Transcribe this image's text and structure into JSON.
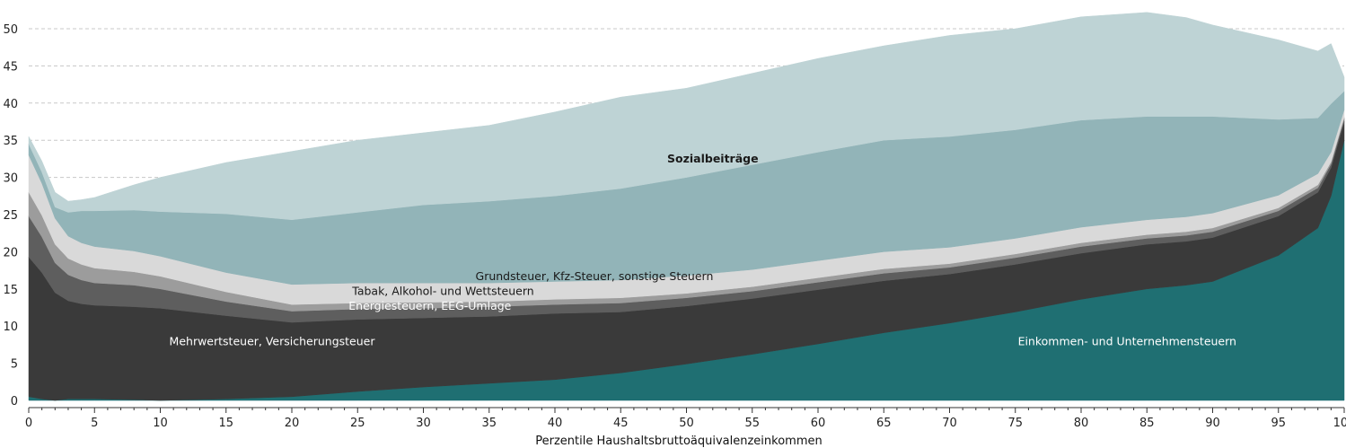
{
  "chart_data": {
    "type": "area",
    "stacked": true,
    "xlabel": "Perzentile Haushaltsbruttoäquivalenzeinkommen",
    "ylabel": "",
    "xlim": [
      0,
      100
    ],
    "ylim": [
      0,
      52
    ],
    "x_ticks": [
      0,
      5,
      10,
      15,
      20,
      25,
      30,
      35,
      40,
      45,
      50,
      55,
      60,
      65,
      70,
      75,
      80,
      85,
      90,
      95,
      100
    ],
    "y_ticks": [
      0,
      5,
      10,
      15,
      20,
      25,
      30,
      35,
      40,
      45,
      50
    ],
    "grid": "horizontal dashed",
    "x": [
      0,
      1,
      2,
      3,
      4,
      5,
      8,
      10,
      15,
      20,
      25,
      30,
      35,
      40,
      45,
      50,
      55,
      60,
      65,
      70,
      75,
      80,
      85,
      88,
      90,
      95,
      98,
      99,
      100
    ],
    "series": [
      {
        "name": "Einkommen- und Unternehmensteuern",
        "color": "#1f6f72",
        "values": [
          0.5,
          0.2,
          0,
          0.2,
          0.2,
          0.2,
          0.1,
          0,
          0.2,
          0.5,
          1.2,
          1.8,
          2.3,
          2.8,
          3.7,
          4.9,
          6.2,
          7.6,
          9.1,
          10.4,
          11.9,
          13.6,
          15.0,
          15.5,
          16.0,
          19.5,
          23.2,
          27.5,
          35.0
        ]
      },
      {
        "name": "Mehrwertsteuer, Versicherungsteuer",
        "color": "#3a3a3a",
        "values": [
          18.8,
          17.0,
          14.5,
          13.2,
          12.8,
          12.6,
          12.5,
          12.4,
          11.2,
          10.0,
          9.7,
          9.3,
          9.0,
          8.9,
          8.2,
          7.8,
          7.5,
          7.3,
          7.0,
          6.6,
          6.4,
          6.2,
          6.0,
          5.9,
          5.9,
          5.3,
          4.8,
          3.8,
          2.5
        ]
      },
      {
        "name": "Energiesteuern, EEG-Umlage",
        "color": "#5e5e5e",
        "values": [
          5.5,
          4.8,
          4.0,
          3.5,
          3.2,
          3.0,
          2.9,
          2.6,
          1.9,
          1.5,
          1.4,
          1.3,
          1.3,
          1.2,
          1.2,
          1.1,
          1.0,
          1.0,
          1.0,
          0.9,
          0.9,
          0.9,
          0.8,
          0.8,
          0.8,
          0.7,
          0.6,
          0.5,
          0.4
        ]
      },
      {
        "name": "Tabak, Alkohol- und Wettsteuern",
        "color": "#9c9c9c",
        "values": [
          3.2,
          2.9,
          2.5,
          2.2,
          2.1,
          2.0,
          1.8,
          1.7,
          1.3,
          0.9,
          0.8,
          0.8,
          0.7,
          0.7,
          0.7,
          0.6,
          0.6,
          0.6,
          0.6,
          0.5,
          0.5,
          0.5,
          0.5,
          0.5,
          0.5,
          0.4,
          0.4,
          0.3,
          0.2
        ]
      },
      {
        "name": "Grundsteuer, Kfz-Steuer, sonstige Steuern",
        "color": "#d9d9d9",
        "values": [
          5.0,
          4.3,
          3.5,
          3.0,
          2.9,
          2.9,
          2.8,
          2.7,
          2.6,
          2.7,
          2.7,
          2.6,
          2.5,
          2.4,
          2.4,
          2.4,
          2.3,
          2.3,
          2.3,
          2.2,
          2.1,
          2.1,
          2.0,
          2.0,
          2.0,
          1.7,
          1.5,
          1.3,
          1.0
        ]
      },
      {
        "name": "Sozialbeiträge",
        "color": "#92b4b8",
        "values": [
          1.5,
          1.5,
          1.5,
          3.2,
          4.3,
          4.8,
          5.5,
          6.0,
          7.9,
          8.7,
          9.5,
          10.5,
          11.0,
          11.5,
          12.3,
          13.2,
          14.1,
          14.6,
          15.0,
          14.9,
          14.6,
          14.4,
          13.9,
          13.5,
          13.0,
          10.2,
          7.5,
          6.5,
          2.5
        ]
      },
      {
        "name": "",
        "color": "#bed3d5",
        "values": [
          1.0,
          1.5,
          2.0,
          1.5,
          1.5,
          1.8,
          3.4,
          4.6,
          6.9,
          9.2,
          9.7,
          9.7,
          10.2,
          11.3,
          12.3,
          12.0,
          12.3,
          12.6,
          12.7,
          13.6,
          13.6,
          13.9,
          14.0,
          13.3,
          12.3,
          10.7,
          9.0,
          8.1,
          1.9
        ]
      }
    ],
    "labels": [
      {
        "text": "Sozialbeiträge",
        "x": 52,
        "y": 32.0,
        "color": "#1a1a1a",
        "weight": "bold"
      },
      {
        "text": "Grundsteuer, Kfz-Steuer, sonstige Steuern",
        "x": 43,
        "y": 16.2,
        "color": "#1a1a1a",
        "weight": "normal"
      },
      {
        "text": "Tabak, Alkohol- und Wettsteuern",
        "x": 31.5,
        "y": 14.2,
        "color": "#1a1a1a",
        "weight": "normal"
      },
      {
        "text": "Energiesteuern, EEG-Umlage",
        "x": 30.5,
        "y": 12.2,
        "color": "#ffffff",
        "weight": "normal"
      },
      {
        "text": "Mehrwertsteuer, Versicherungsteuer",
        "x": 18.5,
        "y": 7.4,
        "color": "#ffffff",
        "weight": "normal"
      },
      {
        "text": "Einkommen- und Unternehmensteuern",
        "x": 83.5,
        "y": 7.4,
        "color": "#ffffff",
        "weight": "normal"
      }
    ]
  }
}
